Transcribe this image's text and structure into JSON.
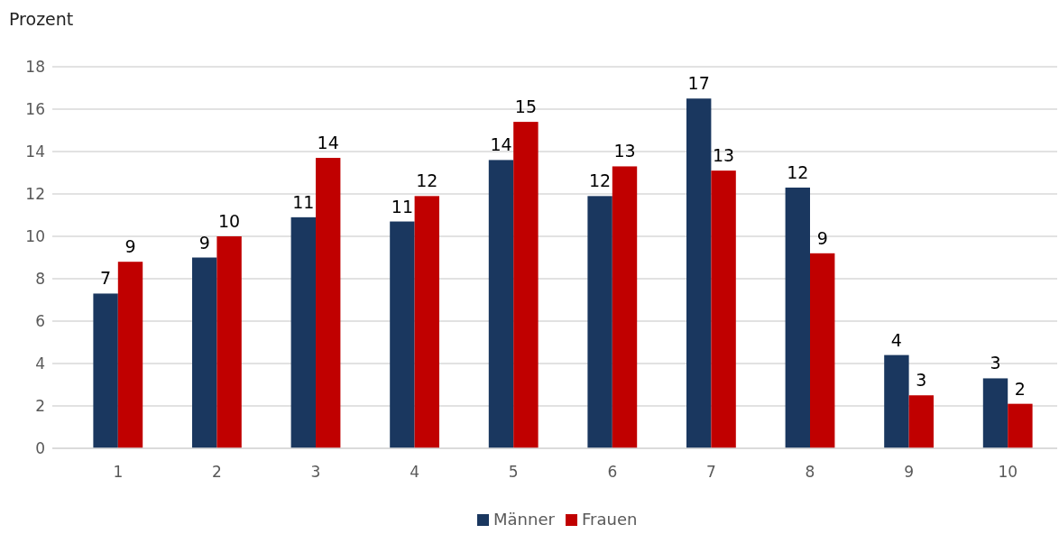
{
  "chart_data": {
    "type": "bar",
    "ylabel": "Prozent",
    "categories": [
      "1",
      "2",
      "3",
      "4",
      "5",
      "6",
      "7",
      "8",
      "9",
      "10"
    ],
    "series": [
      {
        "name": "Männer",
        "color": "#1a375f",
        "values": [
          7.3,
          9.0,
          10.9,
          10.7,
          13.6,
          11.9,
          16.5,
          12.3,
          4.4,
          3.3
        ],
        "value_labels": [
          "7",
          "9",
          "11",
          "11",
          "14",
          "12",
          "17",
          "12",
          "4",
          "3"
        ]
      },
      {
        "name": "Frauen",
        "color": "#c00000",
        "values": [
          8.8,
          10.0,
          13.7,
          11.9,
          15.4,
          13.3,
          13.1,
          9.2,
          2.5,
          2.1
        ],
        "value_labels": [
          "9",
          "10",
          "14",
          "12",
          "15",
          "13",
          "13",
          "9",
          "3",
          "2"
        ]
      }
    ],
    "ylim": [
      0,
      18
    ],
    "yticks": [
      0,
      2,
      4,
      6,
      8,
      10,
      12,
      14,
      16,
      18
    ],
    "grid": "y",
    "legend": "bottom"
  }
}
